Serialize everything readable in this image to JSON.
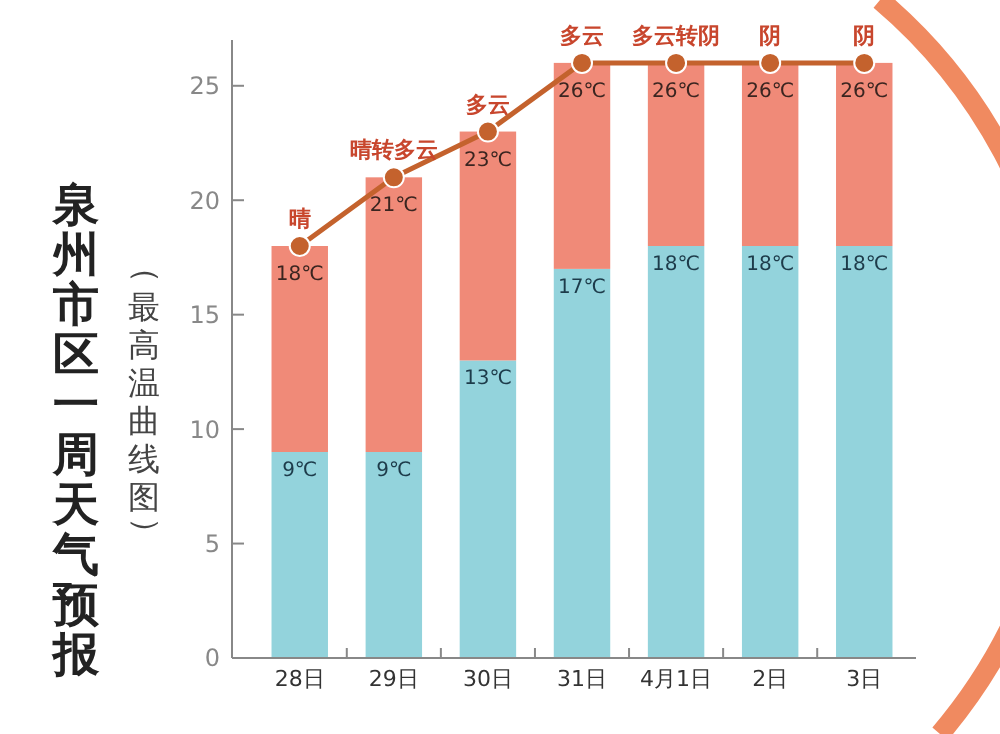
{
  "chart_data": {
    "type": "bar",
    "title": "泉州市区一周天气预报",
    "subtitle": "（最高温曲线图）",
    "stacked": true,
    "categories": [
      "28日",
      "29日",
      "30日",
      "31日",
      "4月1日",
      "2日",
      "3日"
    ],
    "series": [
      {
        "name": null,
        "color": "#93d3dc",
        "values": [
          9,
          9,
          13,
          17,
          18,
          18,
          18
        ],
        "value_labels": [
          "9℃",
          "9℃",
          "13℃",
          "17℃",
          "18℃",
          "18℃",
          "18℃"
        ]
      },
      {
        "name": null,
        "color": "#f08a78",
        "values": [
          9,
          12,
          10,
          9,
          8,
          8,
          8
        ]
      },
      {
        "name": null,
        "type": "line",
        "color": "#c4622d",
        "marker": "circle",
        "values": [
          18,
          21,
          23,
          26,
          26,
          26,
          26
        ],
        "value_labels": [
          "18℃",
          "21℃",
          "23℃",
          "26℃",
          "26℃",
          "26℃",
          "26℃"
        ]
      }
    ],
    "annotations": [
      {
        "text": "晴",
        "x": "28日",
        "y": 18
      },
      {
        "text": "晴转多云",
        "x": "29日",
        "y": 21
      },
      {
        "text": "多云",
        "x": "30日",
        "y": 23
      },
      {
        "text": "多云",
        "x": "31日",
        "y": 26
      },
      {
        "text": "多云转阴",
        "x": "4月1日",
        "y": 26
      },
      {
        "text": "阴",
        "x": "2日",
        "y": 26
      },
      {
        "text": "阴",
        "x": "3日",
        "y": 26
      }
    ],
    "ylim": [
      0,
      27
    ],
    "yticks": [
      0,
      5,
      10,
      15,
      20,
      25
    ],
    "grid": false
  }
}
